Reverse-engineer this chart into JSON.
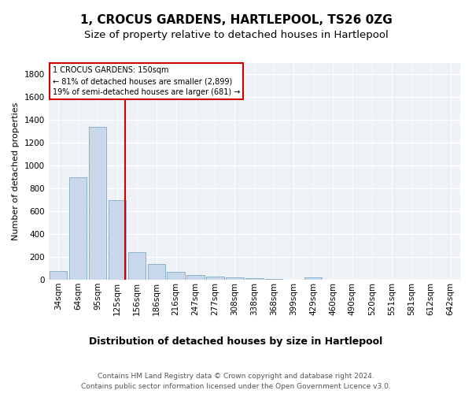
{
  "title": "1, CROCUS GARDENS, HARTLEPOOL, TS26 0ZG",
  "subtitle": "Size of property relative to detached houses in Hartlepool",
  "xlabel": "Distribution of detached houses by size in Hartlepool",
  "ylabel": "Number of detached properties",
  "bar_color": "#c8d8ea",
  "bar_edgecolor": "#8ab4cc",
  "bar_linewidth": 0.7,
  "annotation_box_text": "1 CROCUS GARDENS: 150sqm\n← 81% of detached houses are smaller (2,899)\n19% of semi-detached houses are larger (681) →",
  "footer_line1": "Contains HM Land Registry data © Crown copyright and database right 2024.",
  "footer_line2": "Contains public sector information licensed under the Open Government Licence v3.0.",
  "categories": [
    "34sqm",
    "64sqm",
    "95sqm",
    "125sqm",
    "156sqm",
    "186sqm",
    "216sqm",
    "247sqm",
    "277sqm",
    "308sqm",
    "338sqm",
    "368sqm",
    "399sqm",
    "429sqm",
    "460sqm",
    "490sqm",
    "520sqm",
    "551sqm",
    "581sqm",
    "612sqm",
    "642sqm"
  ],
  "values": [
    75,
    900,
    1340,
    700,
    240,
    140,
    70,
    45,
    25,
    20,
    15,
    10,
    0,
    20,
    0,
    0,
    0,
    0,
    0,
    0,
    0
  ],
  "ylim": [
    0,
    1900
  ],
  "yticks": [
    0,
    200,
    400,
    600,
    800,
    1000,
    1200,
    1400,
    1600,
    1800
  ],
  "bg_color": "#eef2f7",
  "grid_color": "#ffffff",
  "annotation_line_color": "#cc0000",
  "annotation_box_edgecolor": "#cc0000",
  "annotation_line_xindex": 3.42,
  "title_fontsize": 11,
  "subtitle_fontsize": 9.5,
  "tick_fontsize": 7.5,
  "ylabel_fontsize": 8,
  "xlabel_fontsize": 9,
  "footer_fontsize": 6.5
}
